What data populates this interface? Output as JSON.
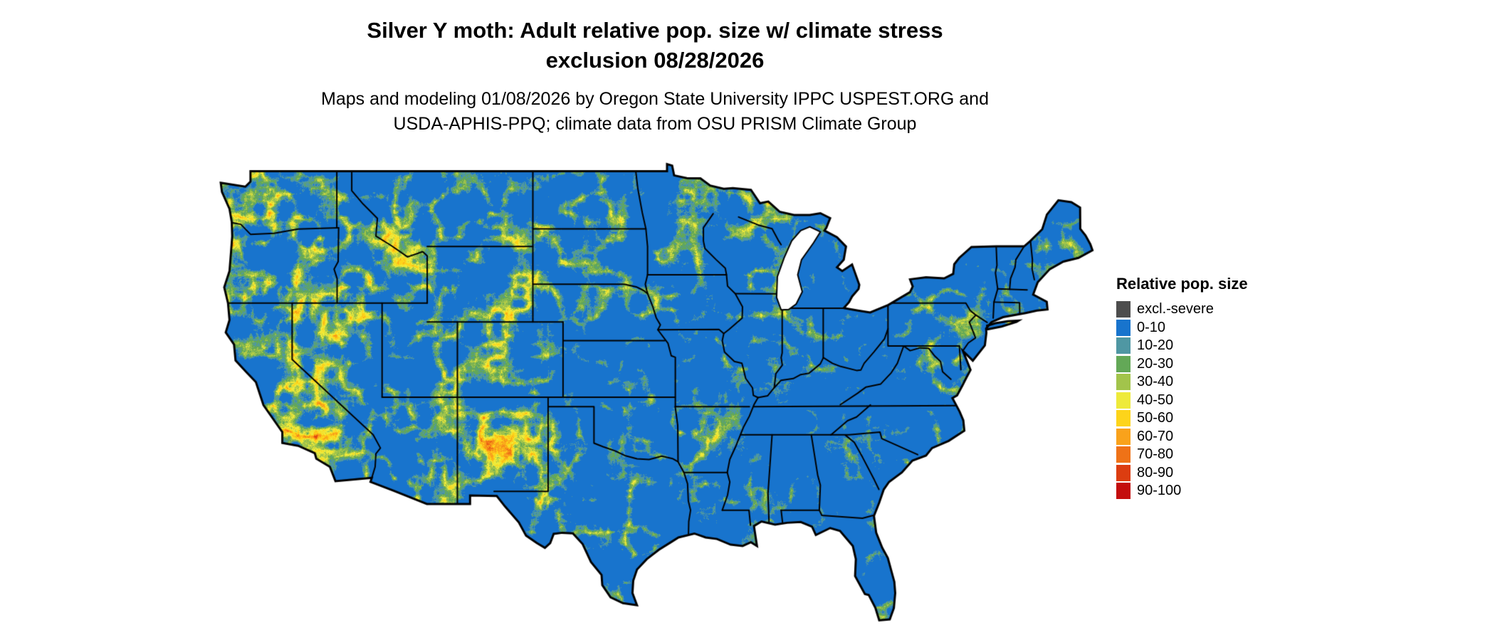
{
  "title": {
    "line1": "Silver Y moth: Adult relative pop. size w/ climate stress",
    "line2": "exclusion 08/28/2026"
  },
  "subtitle": {
    "line1": "Maps and modeling 01/08/2026 by Oregon State University IPPC USPEST.ORG and",
    "line2": "USDA-APHIS-PPQ; climate data from OSU PRISM Climate Group"
  },
  "legend": {
    "title": "Relative pop. size",
    "items": [
      {
        "label": "excl.-severe",
        "color": "#4d4d4d"
      },
      {
        "label": "0-10",
        "color": "#1874cd"
      },
      {
        "label": "10-20",
        "color": "#4f97a3"
      },
      {
        "label": "20-30",
        "color": "#63a857"
      },
      {
        "label": "30-40",
        "color": "#a2c44b"
      },
      {
        "label": "40-50",
        "color": "#eeea3a"
      },
      {
        "label": "50-60",
        "color": "#fdd41a"
      },
      {
        "label": "60-70",
        "color": "#f9a21b"
      },
      {
        "label": "70-80",
        "color": "#ef7217"
      },
      {
        "label": "80-90",
        "color": "#dc3d10"
      },
      {
        "label": "90-100",
        "color": "#c40d0d"
      }
    ]
  },
  "map": {
    "region": "Contiguous United States",
    "type": "raster-choropleth",
    "land_base_color": "#1874cd",
    "water_color": "#ffffff",
    "boundary_color": "#000000",
    "background": "#ffffff"
  }
}
